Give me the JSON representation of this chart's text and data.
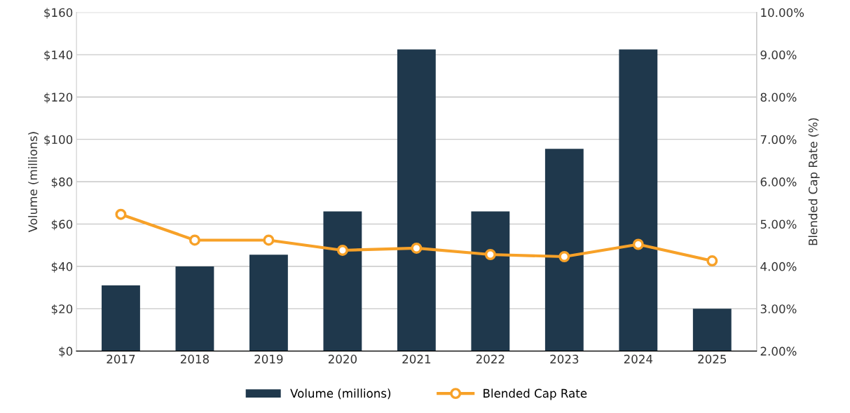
{
  "chart_data": {
    "type": "bar",
    "categories": [
      "2017",
      "2018",
      "2019",
      "2020",
      "2021",
      "2022",
      "2023",
      "2024",
      "2025"
    ],
    "ylabel": "Volume (millions)",
    "y2label": "Blended Cap Rate (%)",
    "series": [
      {
        "name": "Volume (millions)",
        "color": "#1f384c",
        "values": [
          31,
          40,
          45.5,
          66,
          142.5,
          66,
          95.5,
          142.5,
          20
        ]
      },
      {
        "name": "Blended Cap Rate",
        "type": "line",
        "axis": "y2",
        "color": "#f7a128",
        "marker": "circle",
        "values": [
          5.23,
          4.62,
          4.62,
          4.38,
          4.43,
          4.28,
          4.23,
          4.52,
          4.13
        ]
      }
    ],
    "ylim": [
      0,
      160
    ],
    "yticks": [
      {
        "value": 0,
        "label": "$0"
      },
      {
        "value": 20,
        "label": "$20"
      },
      {
        "value": 40,
        "label": "$40"
      },
      {
        "value": 60,
        "label": "$60"
      },
      {
        "value": 80,
        "label": "$80"
      },
      {
        "value": 100,
        "label": "$100"
      },
      {
        "value": 120,
        "label": "$120"
      },
      {
        "value": 140,
        "label": "$140"
      },
      {
        "value": 160,
        "label": "$160"
      }
    ],
    "y2lim": [
      2,
      10
    ],
    "y2ticks": [
      {
        "value": 2,
        "label": "2.00%"
      },
      {
        "value": 3,
        "label": "3.00%"
      },
      {
        "value": 4,
        "label": "4.00%"
      },
      {
        "value": 5,
        "label": "5.00%"
      },
      {
        "value": 6,
        "label": "6.00%"
      },
      {
        "value": 7,
        "label": "7.00%"
      },
      {
        "value": 8,
        "label": "8.00%"
      },
      {
        "value": 9,
        "label": "9.00%"
      },
      {
        "value": 10,
        "label": "10.00%"
      }
    ],
    "grid": "y",
    "legend": "bottom"
  }
}
